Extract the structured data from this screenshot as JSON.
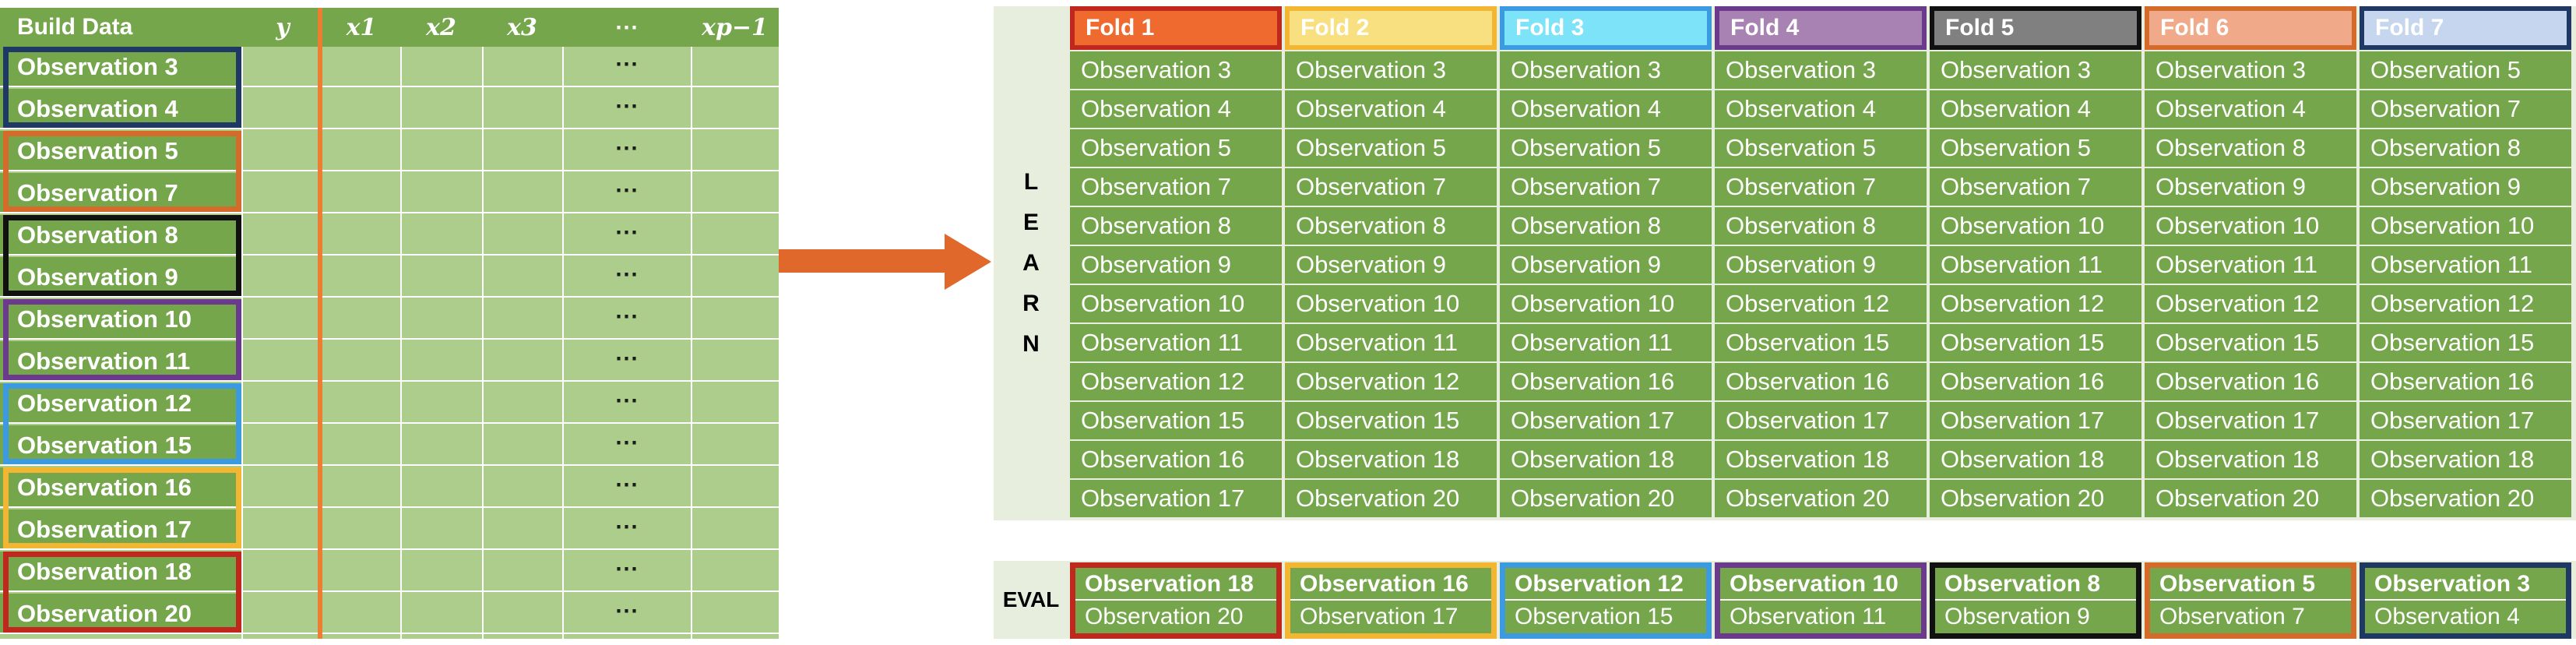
{
  "build_data": {
    "title": "Build Data",
    "columns": [
      "y",
      "x1",
      "x2",
      "x3",
      "⋯",
      "xp−1"
    ],
    "rows": [
      "Observation 3",
      "Observation 4",
      "Observation 5",
      "Observation 7",
      "Observation 8",
      "Observation 9",
      "Observation 10",
      "Observation 11",
      "Observation 12",
      "Observation 15",
      "Observation 16",
      "Observation 17",
      "Observation 18",
      "Observation 20"
    ],
    "dots": "⋯"
  },
  "learn": {
    "label": [
      "L",
      "E",
      "A",
      "R",
      "N"
    ],
    "folds": [
      {
        "name": "Fold 1",
        "color": "#EE6A2E",
        "border": "#C0281E",
        "observations": [
          "Observation 3",
          "Observation 4",
          "Observation 5",
          "Observation 7",
          "Observation 8",
          "Observation 9",
          "Observation 10",
          "Observation 11",
          "Observation 12",
          "Observation 15",
          "Observation 16",
          "Observation 17"
        ]
      },
      {
        "name": "Fold 2",
        "color": "#F8E081",
        "border": "#F2B632",
        "observations": [
          "Observation 3",
          "Observation 4",
          "Observation 5",
          "Observation 7",
          "Observation 8",
          "Observation 9",
          "Observation 10",
          "Observation 11",
          "Observation 12",
          "Observation 15",
          "Observation 18",
          "Observation 20"
        ]
      },
      {
        "name": "Fold 3",
        "color": "#7CE3F9",
        "border": "#3C9BE0",
        "observations": [
          "Observation 3",
          "Observation 4",
          "Observation 5",
          "Observation 7",
          "Observation 8",
          "Observation 9",
          "Observation 10",
          "Observation 11",
          "Observation 16",
          "Observation 17",
          "Observation 18",
          "Observation 20"
        ]
      },
      {
        "name": "Fold 4",
        "color": "#A882B2",
        "border": "#6B3A8C",
        "observations": [
          "Observation 3",
          "Observation 4",
          "Observation 5",
          "Observation 7",
          "Observation 8",
          "Observation 9",
          "Observation 12",
          "Observation 15",
          "Observation 16",
          "Observation 17",
          "Observation 18",
          "Observation 20"
        ]
      },
      {
        "name": "Fold 5",
        "color": "#808080",
        "border": "#111111",
        "observations": [
          "Observation 3",
          "Observation 4",
          "Observation 5",
          "Observation 7",
          "Observation 10",
          "Observation 11",
          "Observation 12",
          "Observation 15",
          "Observation 16",
          "Observation 17",
          "Observation 18",
          "Observation 20"
        ]
      },
      {
        "name": "Fold 6",
        "color": "#F0AA89",
        "border": "#D56B2B",
        "observations": [
          "Observation 3",
          "Observation 4",
          "Observation 8",
          "Observation 9",
          "Observation 10",
          "Observation 11",
          "Observation 12",
          "Observation 15",
          "Observation 16",
          "Observation 17",
          "Observation 18",
          "Observation 20"
        ]
      },
      {
        "name": "Fold 7",
        "color": "#C6D6EE",
        "border": "#1F3864",
        "observations": [
          "Observation 5",
          "Observation 7",
          "Observation 8",
          "Observation 9",
          "Observation 10",
          "Observation 11",
          "Observation 12",
          "Observation 15",
          "Observation 16",
          "Observation 17",
          "Observation 18",
          "Observation 20"
        ]
      }
    ]
  },
  "eval": {
    "label": "EVAL",
    "folds": [
      {
        "first": "Observation 18",
        "second": "Observation 20",
        "border": "#C0281E"
      },
      {
        "first": "Observation 16",
        "second": "Observation 17",
        "border": "#F2B632"
      },
      {
        "first": "Observation 12",
        "second": "Observation 15",
        "border": "#3C9BE0"
      },
      {
        "first": "Observation 10",
        "second": "Observation 11",
        "border": "#6B3A8C"
      },
      {
        "first": "Observation 8",
        "second": "Observation 9",
        "border": "#111111"
      },
      {
        "first": "Observation 5",
        "second": "Observation 7",
        "border": "#D56B2B"
      },
      {
        "first": "Observation 3",
        "second": "Observation 4",
        "border": "#1F3864"
      }
    ]
  },
  "pair_border_colors": [
    "#1F3864",
    "#D56B2B",
    "#111111",
    "#6B3A8C",
    "#3C9BE0",
    "#F2B632",
    "#C0281E"
  ]
}
